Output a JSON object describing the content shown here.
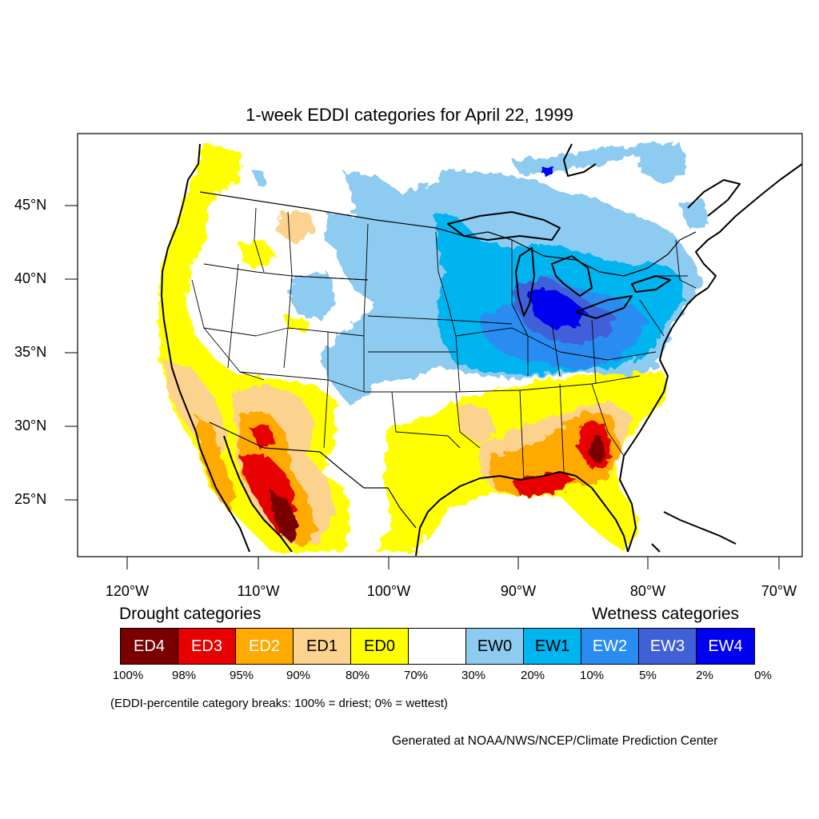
{
  "title": "1-week EDDI categories for April 22, 1999",
  "lat_labels": [
    "45°N",
    "40°N",
    "35°N",
    "30°N",
    "25°N"
  ],
  "lon_labels": [
    "120°W",
    "110°W",
    "100°W",
    "90°W",
    "80°W",
    "70°W"
  ],
  "legend": {
    "drought_heading": "Drought categories",
    "wetness_heading": "Wetness categories",
    "categories": [
      {
        "label": "ED4",
        "color": "#7a0000",
        "text_color": "#ffffff"
      },
      {
        "label": "ED3",
        "color": "#e60000",
        "text_color": "#ffffff"
      },
      {
        "label": "ED2",
        "color": "#ffaa00",
        "text_color": "#ffffff"
      },
      {
        "label": "ED1",
        "color": "#fcd38e",
        "text_color": "#000000"
      },
      {
        "label": "ED0",
        "color": "#ffff00",
        "text_color": "#000000"
      },
      {
        "label": "",
        "color": "#ffffff",
        "text_color": "#000000"
      },
      {
        "label": "EW0",
        "color": "#8ecbf0",
        "text_color": "#000000"
      },
      {
        "label": "EW1",
        "color": "#00b4f0",
        "text_color": "#000000"
      },
      {
        "label": "EW2",
        "color": "#2a8cf0",
        "text_color": "#ffffff"
      },
      {
        "label": "EW3",
        "color": "#4060d8",
        "text_color": "#ffffff"
      },
      {
        "label": "EW4",
        "color": "#0000f0",
        "text_color": "#ffffff"
      }
    ],
    "breaks": [
      "100%",
      "98%",
      "95%",
      "90%",
      "80%",
      "70%",
      "30%",
      "20%",
      "10%",
      "5%",
      "2%",
      "0%"
    ]
  },
  "note": "(EDDI-percentile category breaks: 100% = driest; 0% = wettest)",
  "credit": "Generated at NOAA/NWS/NCEP/Climate Prediction Center"
}
